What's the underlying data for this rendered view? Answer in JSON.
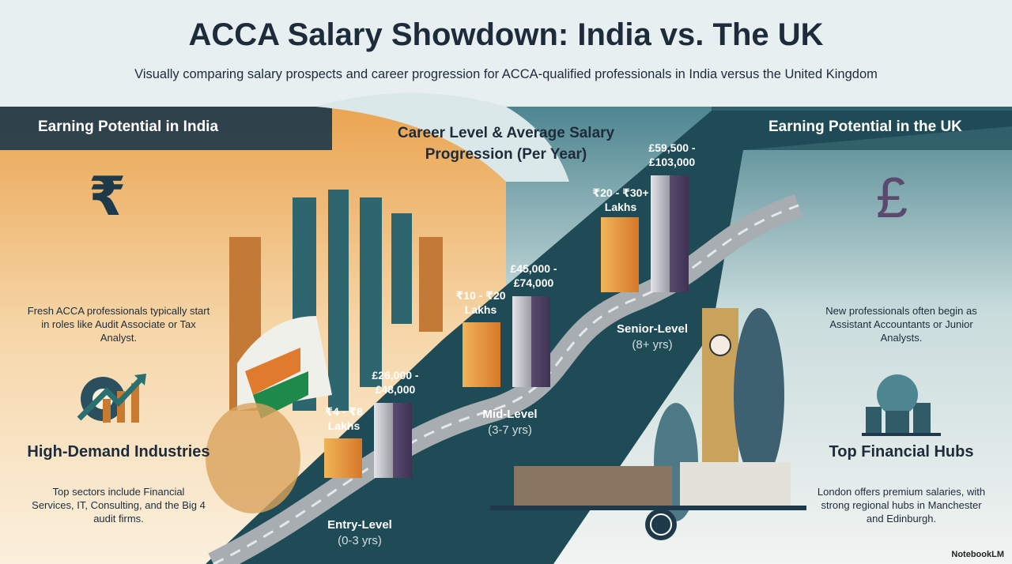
{
  "title": "ACCA Salary Showdown: India vs. The UK",
  "subtitle": "Visually comparing salary prospects and career progression for ACCA-qualified professionals in India versus the United Kingdom",
  "colors": {
    "india_accent": "#e39a3b",
    "uk_accent": "#5b4a6e",
    "dark_teal": "#1f4b57",
    "header_band": "#1e3a4a"
  },
  "left": {
    "header": "Earning Potential in India",
    "currency_icon": "rupee-icon",
    "intro": "Fresh ACCA professionals typically start in roles like Audit Associate or Tax Analyst.",
    "section_icon": "gear-growth-chart-icon",
    "section_title": "High-Demand Industries",
    "section_text": "Top sectors include Financial Services, IT, Consulting, and the Big 4 audit firms."
  },
  "center": {
    "title": "Career Level & Average Salary Progression (Per Year)",
    "levels": [
      {
        "name": "Entry-Level",
        "years": "(0-3 yrs)",
        "india": "₹4 - ₹8 Lakhs",
        "uk": "£26,000 - £48,000"
      },
      {
        "name": "Mid-Level",
        "years": "(3-7 yrs)",
        "india": "₹10 - ₹20 Lakhs",
        "uk": "£45,000 - £74,000"
      },
      {
        "name": "Senior-Level",
        "years": "(8+ yrs)",
        "india": "₹20 - ₹30+ Lakhs",
        "uk": "£59,500 - £103,000"
      }
    ]
  },
  "right": {
    "header": "Earning Potential in the UK",
    "currency_icon": "pound-icon",
    "intro": "New professionals often begin as Assistant Accountants or Junior Analysts.",
    "section_icon": "globe-city-icon",
    "section_title": "Top Financial Hubs",
    "section_text": "London offers premium salaries, with strong regional hubs in Manchester and Edinburgh."
  },
  "watermark": "NotebookLM"
}
